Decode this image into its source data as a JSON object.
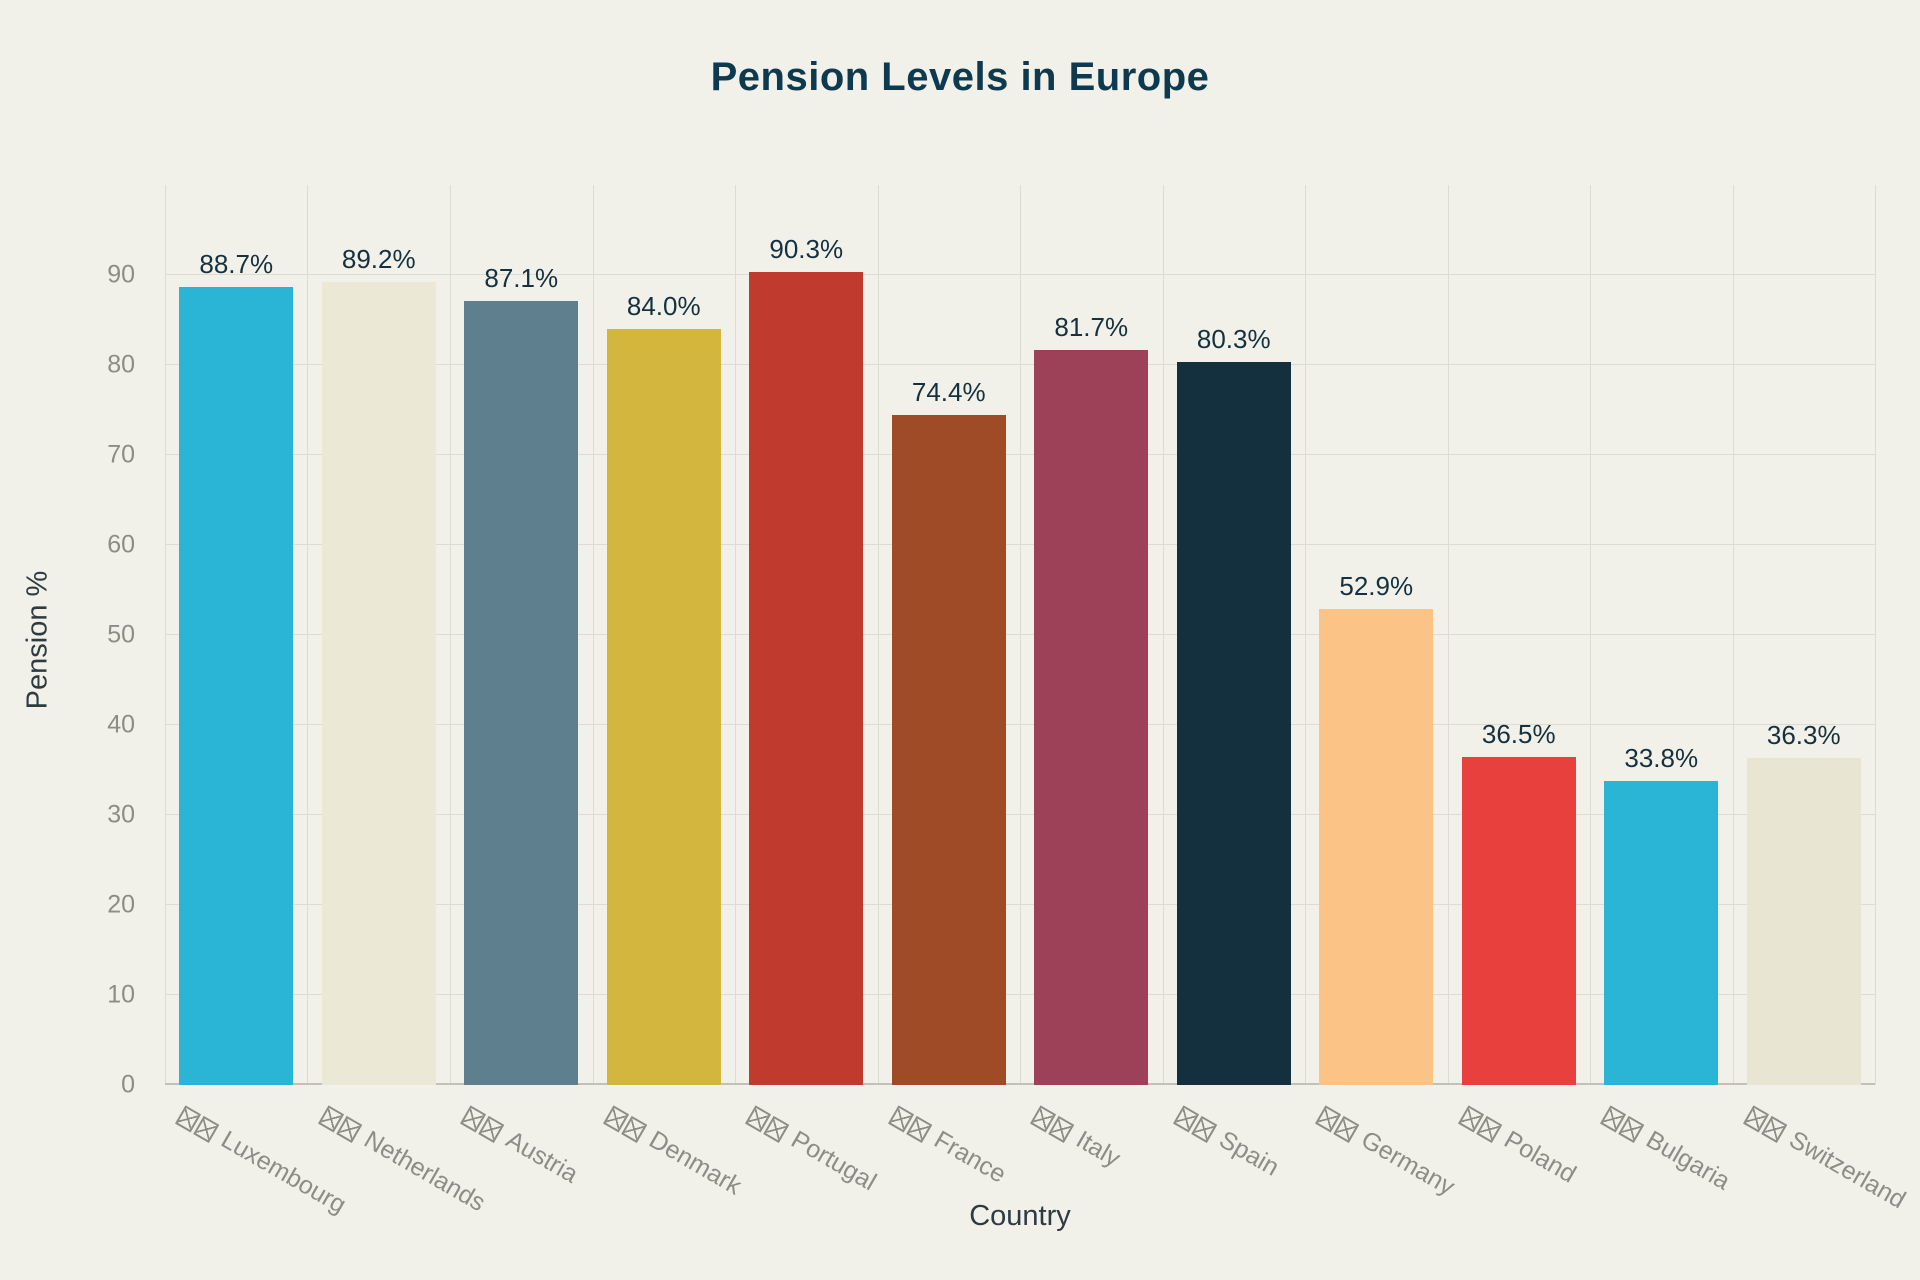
{
  "chart_data": {
    "type": "bar",
    "title": "Pension Levels in Europe",
    "xlabel": "Country",
    "ylabel": "Pension %",
    "ylim": [
      0,
      100
    ],
    "yticks": [
      0,
      10,
      20,
      30,
      40,
      50,
      60,
      70,
      80,
      90
    ],
    "grid": true,
    "legend": false,
    "x_tick_icon": "missing-flag-glyph-box",
    "categories": [
      "Luxembourg",
      "Netherlands",
      "Austria",
      "Denmark",
      "Portugal",
      "France",
      "Italy",
      "Spain",
      "Germany",
      "Poland",
      "Bulgaria",
      "Switzerland"
    ],
    "values": [
      88.7,
      89.2,
      87.1,
      84.0,
      90.3,
      74.4,
      81.7,
      80.3,
      52.9,
      36.5,
      33.8,
      36.3
    ],
    "value_labels": [
      "88.7%",
      "89.2%",
      "87.1%",
      "84.0%",
      "90.3%",
      "74.4%",
      "81.7%",
      "80.3%",
      "52.9%",
      "36.5%",
      "33.8%",
      "36.3%"
    ],
    "bar_colors": [
      "#2ab5d6",
      "#ece8d6",
      "#5e7f8d",
      "#d3b63e",
      "#c13a2e",
      "#a04b28",
      "#9c4157",
      "#14303e",
      "#fbc386",
      "#e7403d",
      "#2ab5d6",
      "#e8e5d2"
    ]
  },
  "colors": {
    "background": "#f1f0e9",
    "title_text": "#0d3a4e",
    "axis_title_text": "#2e3b42",
    "tick_text": "#8d8c85",
    "value_label_text": "#15313f",
    "gridline": "#dedcd2",
    "baseline": "#c2c1b8"
  }
}
